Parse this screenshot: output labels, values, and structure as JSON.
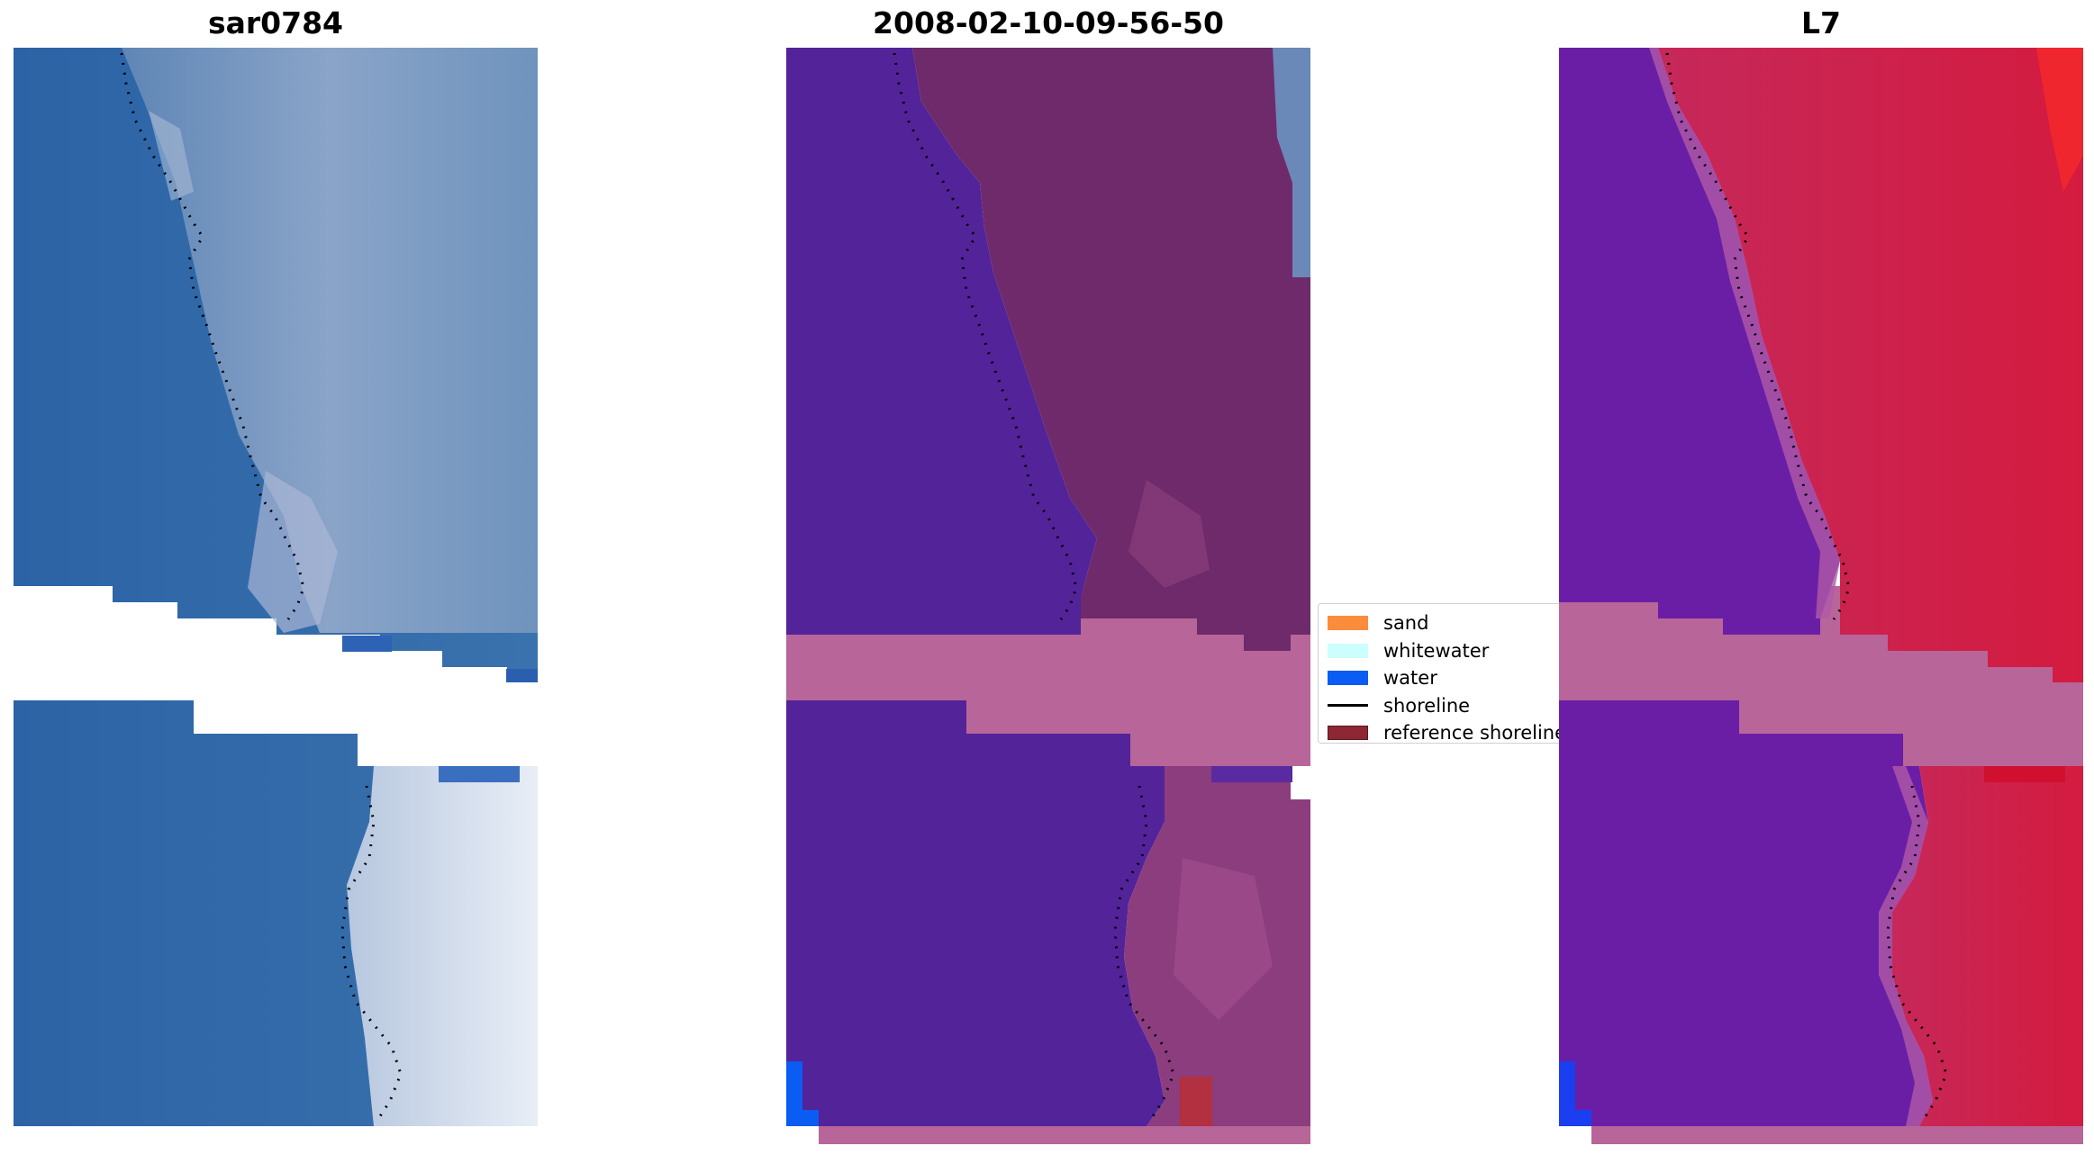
{
  "panels": [
    {
      "title": "sar0784"
    },
    {
      "title": "2008-02-10-09-56-50"
    },
    {
      "title": "L7"
    }
  ],
  "legend": {
    "items": [
      {
        "label": "sand",
        "color": "#fb8c3c",
        "kind": "patch"
      },
      {
        "label": "whitewater",
        "color": "#ccfefd",
        "kind": "patch"
      },
      {
        "label": "water",
        "color": "#0a5cf2",
        "kind": "patch"
      },
      {
        "label": "shoreline",
        "color": "#000000",
        "kind": "line"
      },
      {
        "label": "reference shoreline",
        "color": "#8c2733",
        "kind": "patch"
      }
    ]
  },
  "colors": {
    "rgb_water": "#2f6aa8",
    "rgb_land": "#7f9ec4",
    "class_water": "#53239a",
    "class_land": "#6e2a6a",
    "nodata_pink": "#b8659a",
    "ndwi_water": "#6a1ea6",
    "ndwi_land": "#c8204f"
  }
}
